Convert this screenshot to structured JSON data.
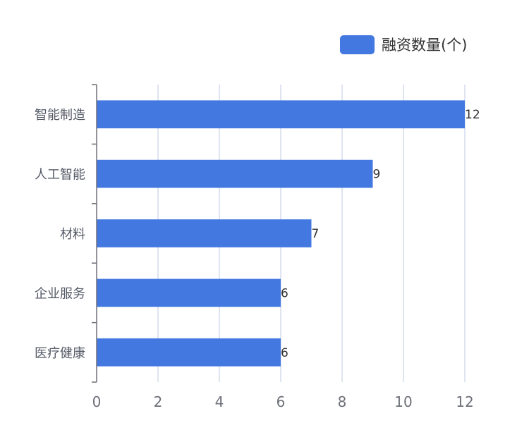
{
  "chart_data": {
    "type": "bar",
    "orientation": "horizontal",
    "categories": [
      "智能制造",
      "人工智能",
      "材料",
      "企业服务",
      "医疗健康"
    ],
    "series": [
      {
        "name": "融资数量(个)",
        "values": [
          12,
          9,
          7,
          6,
          6
        ],
        "color": "#4378e0"
      }
    ],
    "xlim": [
      0,
      12
    ],
    "x_ticks": [
      0,
      2,
      4,
      6,
      8,
      10,
      12
    ],
    "grid": "vertical",
    "legend": "top-right",
    "data_labels": true,
    "colors": {
      "bar": "#4378e0",
      "grid": "#d4dceb",
      "axis": "#6e7079"
    }
  }
}
